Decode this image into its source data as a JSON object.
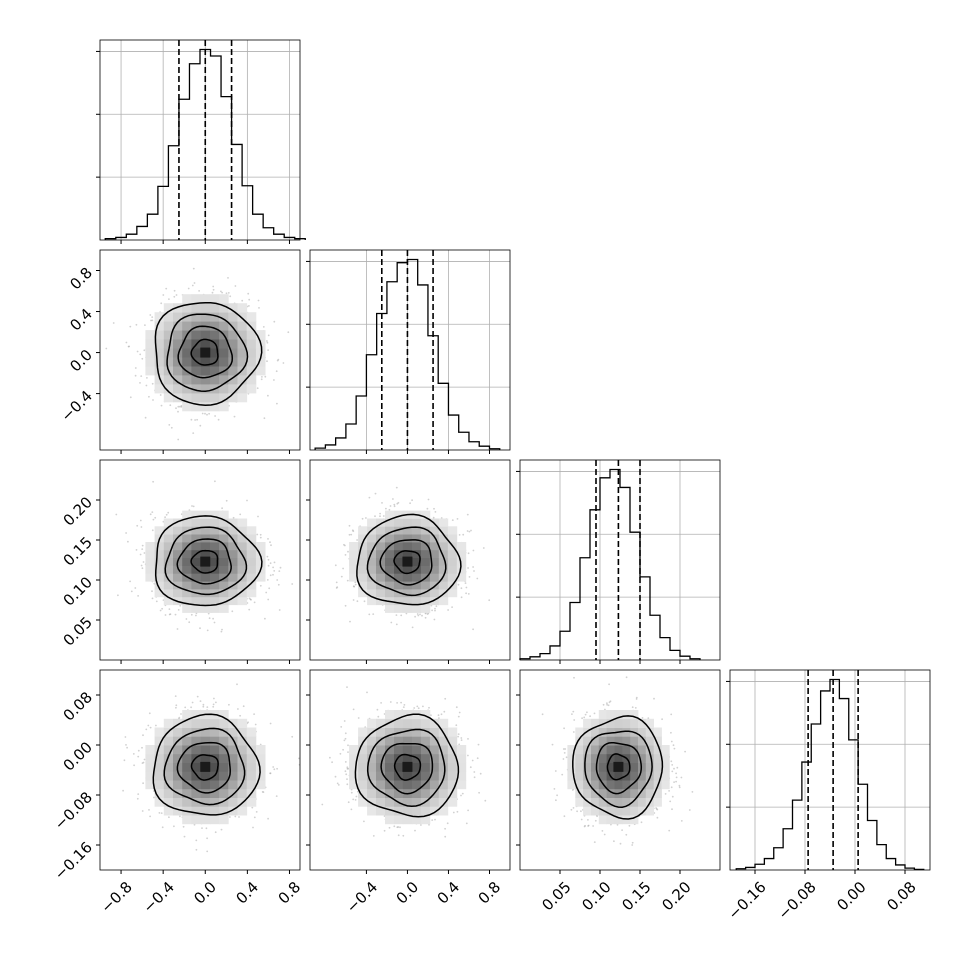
{
  "chart_data": {
    "type": "corner",
    "title": "",
    "grid": true,
    "quantile_lines": "dashed",
    "parameters": [
      {
        "name": "",
        "range": [
          -1.0,
          0.9
        ],
        "quantiles": [
          -0.25,
          0.0,
          0.25
        ],
        "ticks": [
          "−0.8",
          "−0.4",
          "0.0",
          "0.4",
          "0.8"
        ],
        "tick_values": [
          -0.8,
          -0.4,
          0.0,
          0.4,
          0.8
        ],
        "hist_bin_edges": [
          -0.95,
          -0.85,
          -0.75,
          -0.65,
          -0.55,
          -0.45,
          -0.35,
          -0.25,
          -0.15,
          -0.05,
          0.05,
          0.15,
          0.25,
          0.35,
          0.45,
          0.55,
          0.65,
          0.75,
          0.85,
          0.95
        ],
        "hist_counts": [
          2,
          4,
          9,
          21,
          40,
          83,
          146,
          218,
          273,
          295,
          285,
          222,
          148,
          84,
          40,
          19,
          9,
          4,
          2
        ]
      },
      {
        "name": "",
        "range": [
          -0.95,
          1.0
        ],
        "quantiles": [
          -0.25,
          0.0,
          0.25
        ],
        "ticks": [
          "−0.4",
          "0.0",
          "0.4",
          "0.8"
        ],
        "tick_values": [
          -0.4,
          0.0,
          0.4,
          0.8
        ],
        "hist_bin_edges": [
          -0.9,
          -0.8,
          -0.7,
          -0.6,
          -0.5,
          -0.4,
          -0.3,
          -0.2,
          -0.1,
          0.0,
          0.1,
          0.2,
          0.3,
          0.4,
          0.5,
          0.6,
          0.7,
          0.8,
          0.9
        ],
        "hist_counts": [
          3,
          8,
          19,
          41,
          85,
          150,
          215,
          265,
          295,
          300,
          260,
          180,
          105,
          55,
          28,
          13,
          6,
          2
        ]
      },
      {
        "name": "",
        "range": [
          0.0,
          0.25
        ],
        "quantiles": [
          0.095,
          0.123,
          0.15
        ],
        "ticks": [
          "0.05",
          "0.10",
          "0.15",
          "0.20"
        ],
        "tick_values": [
          0.05,
          0.1,
          0.15,
          0.2
        ],
        "hist_bin_edges": [
          0.0,
          0.0125,
          0.025,
          0.0375,
          0.05,
          0.0625,
          0.075,
          0.0875,
          0.1,
          0.1125,
          0.125,
          0.1375,
          0.15,
          0.1625,
          0.175,
          0.1875,
          0.2,
          0.2125,
          0.225
        ],
        "hist_counts": [
          2,
          5,
          10,
          22,
          45,
          90,
          160,
          235,
          285,
          298,
          270,
          200,
          130,
          70,
          35,
          15,
          6,
          2
        ]
      },
      {
        "name": "",
        "range": [
          -0.2,
          0.12
        ],
        "quantiles": [
          -0.075,
          -0.035,
          0.005
        ],
        "ticks": [
          "−0.16",
          "−0.08",
          "0.00",
          "0.08"
        ],
        "tick_values": [
          -0.16,
          -0.08,
          0.0,
          0.08
        ],
        "hist_bin_edges": [
          -0.19,
          -0.175,
          -0.16,
          -0.145,
          -0.13,
          -0.115,
          -0.1,
          -0.085,
          -0.07,
          -0.055,
          -0.04,
          -0.025,
          -0.01,
          0.005,
          0.02,
          0.035,
          0.05,
          0.065,
          0.08,
          0.095,
          0.11
        ],
        "hist_counts": [
          2,
          4,
          9,
          18,
          35,
          65,
          110,
          170,
          230,
          282,
          300,
          270,
          205,
          135,
          78,
          40,
          18,
          8,
          3,
          1
        ]
      }
    ],
    "contours": [
      {
        "x": 0,
        "y": 1,
        "center": [
          0.0,
          0.0
        ],
        "sigma": [
          0.25,
          0.25
        ]
      },
      {
        "x": 0,
        "y": 2,
        "center": [
          0.0,
          0.123
        ],
        "sigma": [
          0.25,
          0.028
        ]
      },
      {
        "x": 1,
        "y": 2,
        "center": [
          0.0,
          0.123
        ],
        "sigma": [
          0.25,
          0.028
        ]
      },
      {
        "x": 0,
        "y": 3,
        "center": [
          0.0,
          -0.035
        ],
        "sigma": [
          0.25,
          0.04
        ]
      },
      {
        "x": 1,
        "y": 3,
        "center": [
          0.0,
          -0.035
        ],
        "sigma": [
          0.25,
          0.04
        ]
      },
      {
        "x": 2,
        "y": 3,
        "center": [
          0.123,
          -0.035
        ],
        "sigma": [
          0.028,
          0.04
        ]
      }
    ]
  }
}
